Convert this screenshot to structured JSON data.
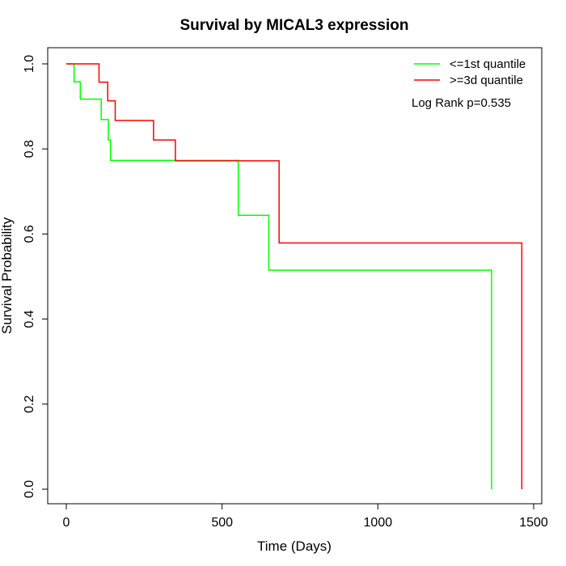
{
  "chart_data": {
    "type": "line",
    "step": true,
    "title": "Survival by MICAL3 expression",
    "xlabel": "Time (Days)",
    "ylabel": "Survival Probability",
    "xlim": [
      0,
      1500
    ],
    "ylim": [
      0,
      1.0
    ],
    "x_ticks": [
      0,
      500,
      1000,
      1500
    ],
    "y_ticks": [
      0.0,
      0.2,
      0.4,
      0.6,
      0.8,
      1.0
    ],
    "x_tick_labels": [
      "0",
      "500",
      "1000",
      "1500"
    ],
    "y_tick_labels": [
      "0.0",
      "0.2",
      "0.4",
      "0.6",
      "0.8",
      "1.0"
    ],
    "legend_position": "top-right",
    "annotation": "Log Rank p=0.535",
    "series": [
      {
        "name": "<=1st quantile",
        "color": "#00ff00",
        "x": [
          0,
          25,
          45,
          112,
          135,
          142,
          552,
          650,
          1365,
          1365
        ],
        "y": [
          1.0,
          0.958,
          0.917,
          0.869,
          0.821,
          0.773,
          0.644,
          0.515,
          0.515,
          0.0
        ]
      },
      {
        "name": ">=3d quantile",
        "color": "#ff0000",
        "x": [
          0,
          105,
          133,
          157,
          280,
          350,
          683,
          1462,
          1462
        ],
        "y": [
          1.0,
          0.957,
          0.913,
          0.867,
          0.821,
          0.772,
          0.579,
          0.579,
          0.0
        ]
      }
    ]
  }
}
